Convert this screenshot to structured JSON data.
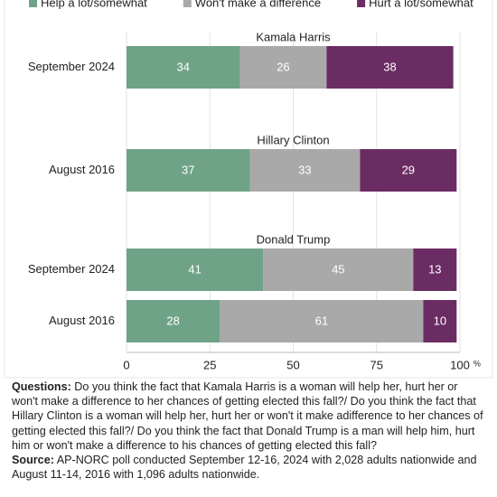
{
  "chart_data": {
    "type": "bar",
    "orientation": "horizontal",
    "stacked": true,
    "legend": [
      {
        "name": "Help a lot/somewhat",
        "color": "#6fa388"
      },
      {
        "name": "Won't make a difference",
        "color": "#a9a9a9"
      },
      {
        "name": "Hurt a lot/somewhat",
        "color": "#6b2c63"
      }
    ],
    "panels": [
      {
        "title": "Kamala Harris",
        "categories": [
          "September 2024"
        ],
        "series": [
          {
            "values": [
              34
            ]
          },
          {
            "values": [
              26
            ]
          },
          {
            "values": [
              38
            ]
          }
        ]
      },
      {
        "title": "Hillary Clinton",
        "categories": [
          "August 2016"
        ],
        "series": [
          {
            "values": [
              37
            ]
          },
          {
            "values": [
              33
            ]
          },
          {
            "values": [
              29
            ]
          }
        ]
      },
      {
        "title": "Donald Trump",
        "categories": [
          "September 2024",
          "August 2016"
        ],
        "series": [
          {
            "values": [
              41,
              28
            ]
          },
          {
            "values": [
              45,
              61
            ]
          },
          {
            "values": [
              13,
              10
            ]
          }
        ]
      }
    ],
    "xlim": [
      0,
      100
    ],
    "xticks": [
      0,
      25,
      50,
      75,
      {
        "value": 100,
        "label": "100"
      }
    ],
    "x_unit": "%",
    "grid": true
  },
  "notes": {
    "questions_label": "Questions:",
    "questions": "Do you think the fact that Kamala Harris is a woman will help her, hurt her or won't make a difference to her chances of getting elected this fall?/ Do you think the fact that Hillary Clinton is a woman will help her, hurt her or won't it make adifference to her chances of getting elected this fall?/ Do you think the fact that Donald Trump is a man will help him, hurt him or won't make a difference to his chances of getting elected this fall?",
    "source_label": "Source:",
    "source": "AP-NORC poll conducted September 12-16, 2024 with 2,028 adults nationwide and August 11-14, 2016 with 1,096 adults nationwide."
  }
}
